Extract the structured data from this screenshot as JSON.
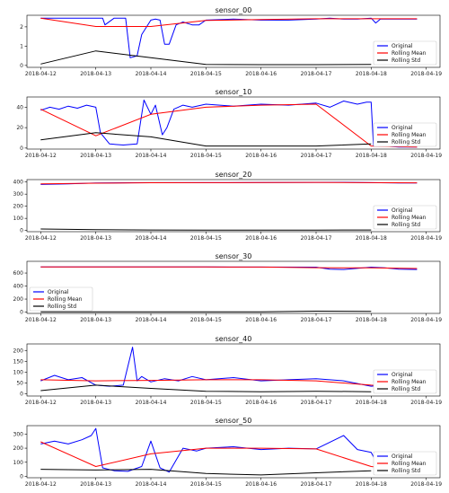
{
  "figure": {
    "legend_labels": [
      "Original",
      "Rolling Mean",
      "Rolling Std"
    ],
    "colors": {
      "original": "#0000ff",
      "rolling_mean": "#ff0000",
      "rolling_std": "#000000"
    }
  },
  "chart_data": [
    {
      "type": "line",
      "title": "sensor_00",
      "xlabel": "",
      "ylabel": "",
      "xlim": [
        "2018-04-11 18:00",
        "2018-04-19 06:00"
      ],
      "ylim": [
        -0.1,
        2.6
      ],
      "yticks": [
        0,
        1,
        2
      ],
      "xticks": [
        "2018-04-12",
        "2018-04-13",
        "2018-04-14",
        "2018-04-15",
        "2018-04-16",
        "2018-04-17",
        "2018-04-18",
        "2018-04-19"
      ],
      "legend": {
        "position": "right"
      },
      "grid": false,
      "series": [
        {
          "name": "Original",
          "color": "#0000ff",
          "x": [
            "2018-04-12",
            "2018-04-12 12:00",
            "2018-04-13",
            "2018-04-13 03:00",
            "2018-04-13 04:00",
            "2018-04-13 08:00",
            "2018-04-13 10:00",
            "2018-04-13 13:00",
            "2018-04-13 15:00",
            "2018-04-13 18:00",
            "2018-04-13 20:00",
            "2018-04-14",
            "2018-04-14 02:00",
            "2018-04-14 04:00",
            "2018-04-14 06:00",
            "2018-04-14 08:00",
            "2018-04-14 11:00",
            "2018-04-14 14:00",
            "2018-04-14 18:00",
            "2018-04-14 21:00",
            "2018-04-15",
            "2018-04-15 12:00",
            "2018-04-16",
            "2018-04-16 12:00",
            "2018-04-17",
            "2018-04-17 06:00",
            "2018-04-17 12:00",
            "2018-04-17 18:00",
            "2018-04-18",
            "2018-04-18 02:00",
            "2018-04-18 04:00",
            "2018-04-18 12:00",
            "2018-04-18 20:00"
          ],
          "y": [
            2.45,
            2.45,
            2.45,
            2.45,
            2.1,
            2.45,
            2.45,
            2.45,
            0.4,
            0.5,
            1.6,
            2.35,
            2.4,
            2.35,
            1.1,
            1.1,
            2.1,
            2.25,
            2.1,
            2.1,
            2.35,
            2.4,
            2.35,
            2.35,
            2.4,
            2.45,
            2.4,
            2.4,
            2.45,
            2.2,
            2.4,
            2.4,
            2.4
          ]
        },
        {
          "name": "Rolling Mean",
          "color": "#ff0000",
          "x": [
            "2018-04-12",
            "2018-04-13",
            "2018-04-14",
            "2018-04-15",
            "2018-04-16",
            "2018-04-17",
            "2018-04-18",
            "2018-04-18 20:00"
          ],
          "y": [
            2.45,
            2.02,
            2.02,
            2.33,
            2.38,
            2.42,
            2.42,
            2.42
          ]
        },
        {
          "name": "Rolling Std",
          "color": "#000000",
          "x": [
            "2018-04-12",
            "2018-04-13",
            "2018-04-14",
            "2018-04-15",
            "2018-04-16",
            "2018-04-17",
            "2018-04-18"
          ],
          "y": [
            0.07,
            0.75,
            0.4,
            0.05,
            0.04,
            0.04,
            0.05
          ]
        }
      ]
    },
    {
      "type": "line",
      "title": "sensor_10",
      "xlabel": "",
      "ylabel": "",
      "xlim": [
        "2018-04-11 18:00",
        "2018-04-19 06:00"
      ],
      "ylim": [
        -1,
        50
      ],
      "yticks": [
        0,
        20,
        40
      ],
      "xticks": [
        "2018-04-12",
        "2018-04-13",
        "2018-04-14",
        "2018-04-15",
        "2018-04-16",
        "2018-04-17",
        "2018-04-18",
        "2018-04-19"
      ],
      "legend": {
        "position": "right"
      },
      "grid": false,
      "series": [
        {
          "name": "Original",
          "color": "#0000ff",
          "x": [
            "2018-04-12",
            "2018-04-12 04:00",
            "2018-04-12 08:00",
            "2018-04-12 12:00",
            "2018-04-12 16:00",
            "2018-04-12 20:00",
            "2018-04-13",
            "2018-04-13 02:00",
            "2018-04-13 06:00",
            "2018-04-13 12:00",
            "2018-04-13 18:00",
            "2018-04-13 21:00",
            "2018-04-14",
            "2018-04-14 02:00",
            "2018-04-14 05:00",
            "2018-04-14 07:00",
            "2018-04-14 10:00",
            "2018-04-14 14:00",
            "2018-04-14 18:00",
            "2018-04-15",
            "2018-04-15 12:00",
            "2018-04-16",
            "2018-04-16 12:00",
            "2018-04-17",
            "2018-04-17 06:00",
            "2018-04-17 12:00",
            "2018-04-17 18:00",
            "2018-04-17 22:00",
            "2018-04-18",
            "2018-04-18 01:00",
            "2018-04-18 06:00",
            "2018-04-18 12:00",
            "2018-04-18 20:00"
          ],
          "y": [
            37,
            40,
            38,
            41,
            39,
            42,
            40,
            15,
            4,
            3,
            4,
            47,
            33,
            42,
            13,
            20,
            38,
            42,
            40,
            43,
            41,
            43,
            42,
            44,
            40,
            46,
            43,
            45,
            45,
            2,
            2,
            1,
            1
          ]
        },
        {
          "name": "Rolling Mean",
          "color": "#ff0000",
          "x": [
            "2018-04-12",
            "2018-04-13",
            "2018-04-14",
            "2018-04-15",
            "2018-04-16",
            "2018-04-17",
            "2018-04-18",
            "2018-04-18 20:00"
          ],
          "y": [
            38,
            12,
            33,
            40,
            42,
            43,
            2,
            1
          ]
        },
        {
          "name": "Rolling Std",
          "color": "#000000",
          "x": [
            "2018-04-12",
            "2018-04-13",
            "2018-04-14",
            "2018-04-15",
            "2018-04-16",
            "2018-04-17",
            "2018-04-18"
          ],
          "y": [
            8,
            15,
            11,
            2,
            2,
            2,
            4
          ]
        }
      ]
    },
    {
      "type": "line",
      "title": "sensor_20",
      "xlabel": "",
      "ylabel": "",
      "xlim": [
        "2018-04-11 18:00",
        "2018-04-19 06:00"
      ],
      "ylim": [
        -10,
        420
      ],
      "yticks": [
        0,
        100,
        200,
        300,
        400
      ],
      "xticks": [
        "2018-04-12",
        "2018-04-13",
        "2018-04-14",
        "2018-04-15",
        "2018-04-16",
        "2018-04-17",
        "2018-04-18",
        "2018-04-19"
      ],
      "legend": {
        "position": "right"
      },
      "grid": false,
      "series": [
        {
          "name": "Original",
          "color": "#0000ff",
          "x": [
            "2018-04-12",
            "2018-04-12 12:00",
            "2018-04-13",
            "2018-04-14",
            "2018-04-15",
            "2018-04-16",
            "2018-04-17",
            "2018-04-17 12:00",
            "2018-04-18",
            "2018-04-18 12:00",
            "2018-04-18 20:00"
          ],
          "y": [
            380,
            385,
            392,
            395,
            395,
            396,
            397,
            398,
            395,
            392,
            392
          ]
        },
        {
          "name": "Rolling Mean",
          "color": "#ff0000",
          "x": [
            "2018-04-12",
            "2018-04-13",
            "2018-04-14",
            "2018-04-15",
            "2018-04-16",
            "2018-04-17",
            "2018-04-18",
            "2018-04-18 20:00"
          ],
          "y": [
            385,
            390,
            394,
            395,
            396,
            397,
            395,
            393
          ]
        },
        {
          "name": "Rolling Std",
          "color": "#000000",
          "x": [
            "2018-04-12",
            "2018-04-13",
            "2018-04-14",
            "2018-04-15",
            "2018-04-16",
            "2018-04-17",
            "2018-04-18"
          ],
          "y": [
            12,
            6,
            4,
            3,
            3,
            3,
            4
          ]
        }
      ]
    },
    {
      "type": "line",
      "title": "sensor_30",
      "xlabel": "",
      "ylabel": "",
      "xlim": [
        "2018-04-11 18:00",
        "2018-04-19 06:00"
      ],
      "ylim": [
        -20,
        780
      ],
      "yticks": [
        0,
        200,
        400,
        600
      ],
      "xticks": [
        "2018-04-12",
        "2018-04-13",
        "2018-04-14",
        "2018-04-15",
        "2018-04-16",
        "2018-04-17",
        "2018-04-18",
        "2018-04-19"
      ],
      "legend": {
        "position": "left"
      },
      "grid": false,
      "series": [
        {
          "name": "Original",
          "color": "#0000ff",
          "x": [
            "2018-04-12",
            "2018-04-13",
            "2018-04-14",
            "2018-04-15",
            "2018-04-16",
            "2018-04-17",
            "2018-04-17 06:00",
            "2018-04-17 12:00",
            "2018-04-18",
            "2018-04-18 06:00",
            "2018-04-18 12:00",
            "2018-04-18 20:00"
          ],
          "y": [
            695,
            695,
            695,
            693,
            692,
            690,
            660,
            655,
            690,
            680,
            660,
            655
          ]
        },
        {
          "name": "Rolling Mean",
          "color": "#ff0000",
          "x": [
            "2018-04-12",
            "2018-04-13",
            "2018-04-14",
            "2018-04-15",
            "2018-04-16",
            "2018-04-17",
            "2018-04-18",
            "2018-04-18 20:00"
          ],
          "y": [
            695,
            695,
            695,
            693,
            692,
            682,
            680,
            670
          ]
        },
        {
          "name": "Rolling Std",
          "color": "#000000",
          "x": [
            "2018-04-12",
            "2018-04-13",
            "2018-04-14",
            "2018-04-15",
            "2018-04-16",
            "2018-04-17",
            "2018-04-18"
          ],
          "y": [
            4,
            3,
            3,
            3,
            3,
            14,
            10
          ]
        }
      ]
    },
    {
      "type": "line",
      "title": "sensor_40",
      "xlabel": "",
      "ylabel": "",
      "xlim": [
        "2018-04-11 18:00",
        "2018-04-19 06:00"
      ],
      "ylim": [
        -10,
        230
      ],
      "yticks": [
        0,
        50,
        100,
        150,
        200
      ],
      "xticks": [
        "2018-04-12",
        "2018-04-13",
        "2018-04-14",
        "2018-04-15",
        "2018-04-16",
        "2018-04-17",
        "2018-04-18",
        "2018-04-19"
      ],
      "legend": {
        "position": "right"
      },
      "grid": false,
      "series": [
        {
          "name": "Original",
          "color": "#0000ff",
          "x": [
            "2018-04-12",
            "2018-04-12 06:00",
            "2018-04-12 12:00",
            "2018-04-12 18:00",
            "2018-04-13",
            "2018-04-13 06:00",
            "2018-04-13 12:00",
            "2018-04-13 16:00",
            "2018-04-13 18:00",
            "2018-04-13 20:00",
            "2018-04-14",
            "2018-04-14 06:00",
            "2018-04-14 12:00",
            "2018-04-14 18:00",
            "2018-04-15",
            "2018-04-15 12:00",
            "2018-04-16",
            "2018-04-16 12:00",
            "2018-04-17",
            "2018-04-17 12:00",
            "2018-04-18",
            "2018-04-18 06:00",
            "2018-04-18 12:00",
            "2018-04-18 20:00"
          ],
          "y": [
            60,
            85,
            65,
            75,
            40,
            35,
            40,
            215,
            60,
            80,
            55,
            70,
            60,
            80,
            65,
            75,
            60,
            65,
            70,
            60,
            35,
            40,
            30,
            30
          ]
        },
        {
          "name": "Rolling Mean",
          "color": "#ff0000",
          "x": [
            "2018-04-12",
            "2018-04-13",
            "2018-04-14",
            "2018-04-15",
            "2018-04-16",
            "2018-04-17",
            "2018-04-18",
            "2018-04-18 20:00"
          ],
          "y": [
            65,
            60,
            62,
            65,
            65,
            60,
            40,
            30
          ]
        },
        {
          "name": "Rolling Std",
          "color": "#000000",
          "x": [
            "2018-04-12",
            "2018-04-13",
            "2018-04-14",
            "2018-04-15",
            "2018-04-16",
            "2018-04-17",
            "2018-04-18"
          ],
          "y": [
            15,
            40,
            25,
            12,
            10,
            12,
            10
          ]
        }
      ]
    },
    {
      "type": "line",
      "title": "sensor_50",
      "xlabel": "",
      "ylabel": "",
      "xlim": [
        "2018-04-11 18:00",
        "2018-04-19 06:00"
      ],
      "ylim": [
        -10,
        360
      ],
      "yticks": [
        0,
        100,
        200,
        300
      ],
      "xticks": [
        "2018-04-12",
        "2018-04-13",
        "2018-04-14",
        "2018-04-15",
        "2018-04-16",
        "2018-04-17",
        "2018-04-18",
        "2018-04-19"
      ],
      "legend": {
        "position": "right"
      },
      "grid": false,
      "series": [
        {
          "name": "Original",
          "color": "#0000ff",
          "x": [
            "2018-04-12",
            "2018-04-12 06:00",
            "2018-04-12 12:00",
            "2018-04-12 18:00",
            "2018-04-12 22:00",
            "2018-04-13",
            "2018-04-13 03:00",
            "2018-04-13 08:00",
            "2018-04-13 14:00",
            "2018-04-13 20:00",
            "2018-04-14",
            "2018-04-14 04:00",
            "2018-04-14 08:00",
            "2018-04-14 14:00",
            "2018-04-14 20:00",
            "2018-04-15",
            "2018-04-15 12:00",
            "2018-04-16",
            "2018-04-16 12:00",
            "2018-04-17",
            "2018-04-17 12:00",
            "2018-04-17 18:00",
            "2018-04-18",
            "2018-04-18 04:00",
            "2018-04-18 12:00",
            "2018-04-18 20:00"
          ],
          "y": [
            230,
            250,
            230,
            260,
            290,
            340,
            60,
            40,
            35,
            70,
            250,
            60,
            30,
            200,
            180,
            200,
            210,
            190,
            200,
            195,
            290,
            190,
            170,
            50,
            40,
            35
          ]
        },
        {
          "name": "Rolling Mean",
          "color": "#ff0000",
          "x": [
            "2018-04-12",
            "2018-04-13",
            "2018-04-14",
            "2018-04-15",
            "2018-04-16",
            "2018-04-17",
            "2018-04-18",
            "2018-04-18 20:00"
          ],
          "y": [
            245,
            70,
            160,
            200,
            200,
            195,
            70,
            35
          ]
        },
        {
          "name": "Rolling Std",
          "color": "#000000",
          "x": [
            "2018-04-12",
            "2018-04-13",
            "2018-04-14",
            "2018-04-15",
            "2018-04-16",
            "2018-04-17",
            "2018-04-18"
          ],
          "y": [
            50,
            45,
            50,
            20,
            10,
            25,
            40
          ]
        }
      ]
    }
  ]
}
